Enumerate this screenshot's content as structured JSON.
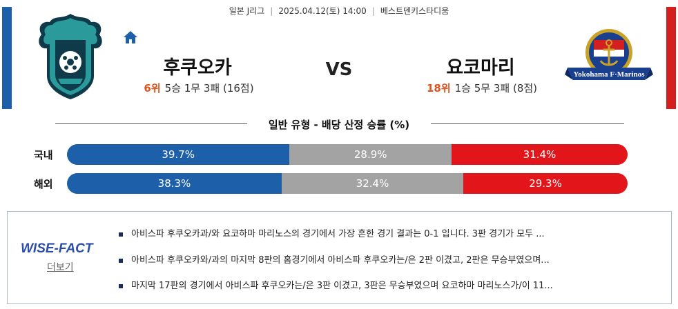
{
  "colors": {
    "home": "#1d5fa8",
    "away": "#d41f1f",
    "draw": "#a3a3a3",
    "loss": "#e2151a",
    "rank": "#e0521a"
  },
  "match": {
    "league": "일본 J리그",
    "datetime": "2025.04.12(토) 14:00",
    "stadium": "베스트덴키스타디움",
    "vs": "VS"
  },
  "home_team": {
    "name": "후쿠오카",
    "rank": "6위",
    "record": "5승 1무 3패 (16점)",
    "logo_icon": "avispa-fukuoka-crest"
  },
  "away_team": {
    "name": "요코마리",
    "rank": "18위",
    "record": "1승 5무 3패 (8점)",
    "logo_icon": "yokohama-f-marinos-crest",
    "logo_text": "Yokohama F·Marinos"
  },
  "odds_section": {
    "title": "일반 유형 - 배당 산정 승률 (%)",
    "rows": [
      {
        "label": "국내",
        "win": 39.7,
        "draw": 28.9,
        "loss": 31.4,
        "win_text": "39.7%",
        "draw_text": "28.9%",
        "loss_text": "31.4%"
      },
      {
        "label": "해외",
        "win": 38.3,
        "draw": 32.4,
        "loss": 29.3,
        "win_text": "38.3%",
        "draw_text": "32.4%",
        "loss_text": "29.3%"
      }
    ]
  },
  "wise_fact": {
    "logo_text": "WISE-FACT",
    "more_label": "더보기",
    "items": [
      "아비스파 후쿠오카과/와 요코하마 마리노스의 경기에서 가장 흔한 경기 결과는 0-1 입니다. 3판 경기가 모두 ...",
      "아비스파 후쿠오카와/과의 마지막 8판의 홈경기에서 아비스파 후쿠오카는/은 2판 이겼고, 2판은 무승부였으며...",
      "마지막 17판의 경기에서 아비스파 후쿠오카는/은 3판 이겼고, 3판은 무승부였으며 요코하마 마리노스가/이 11..."
    ]
  },
  "icons": {
    "home": "home-icon"
  }
}
